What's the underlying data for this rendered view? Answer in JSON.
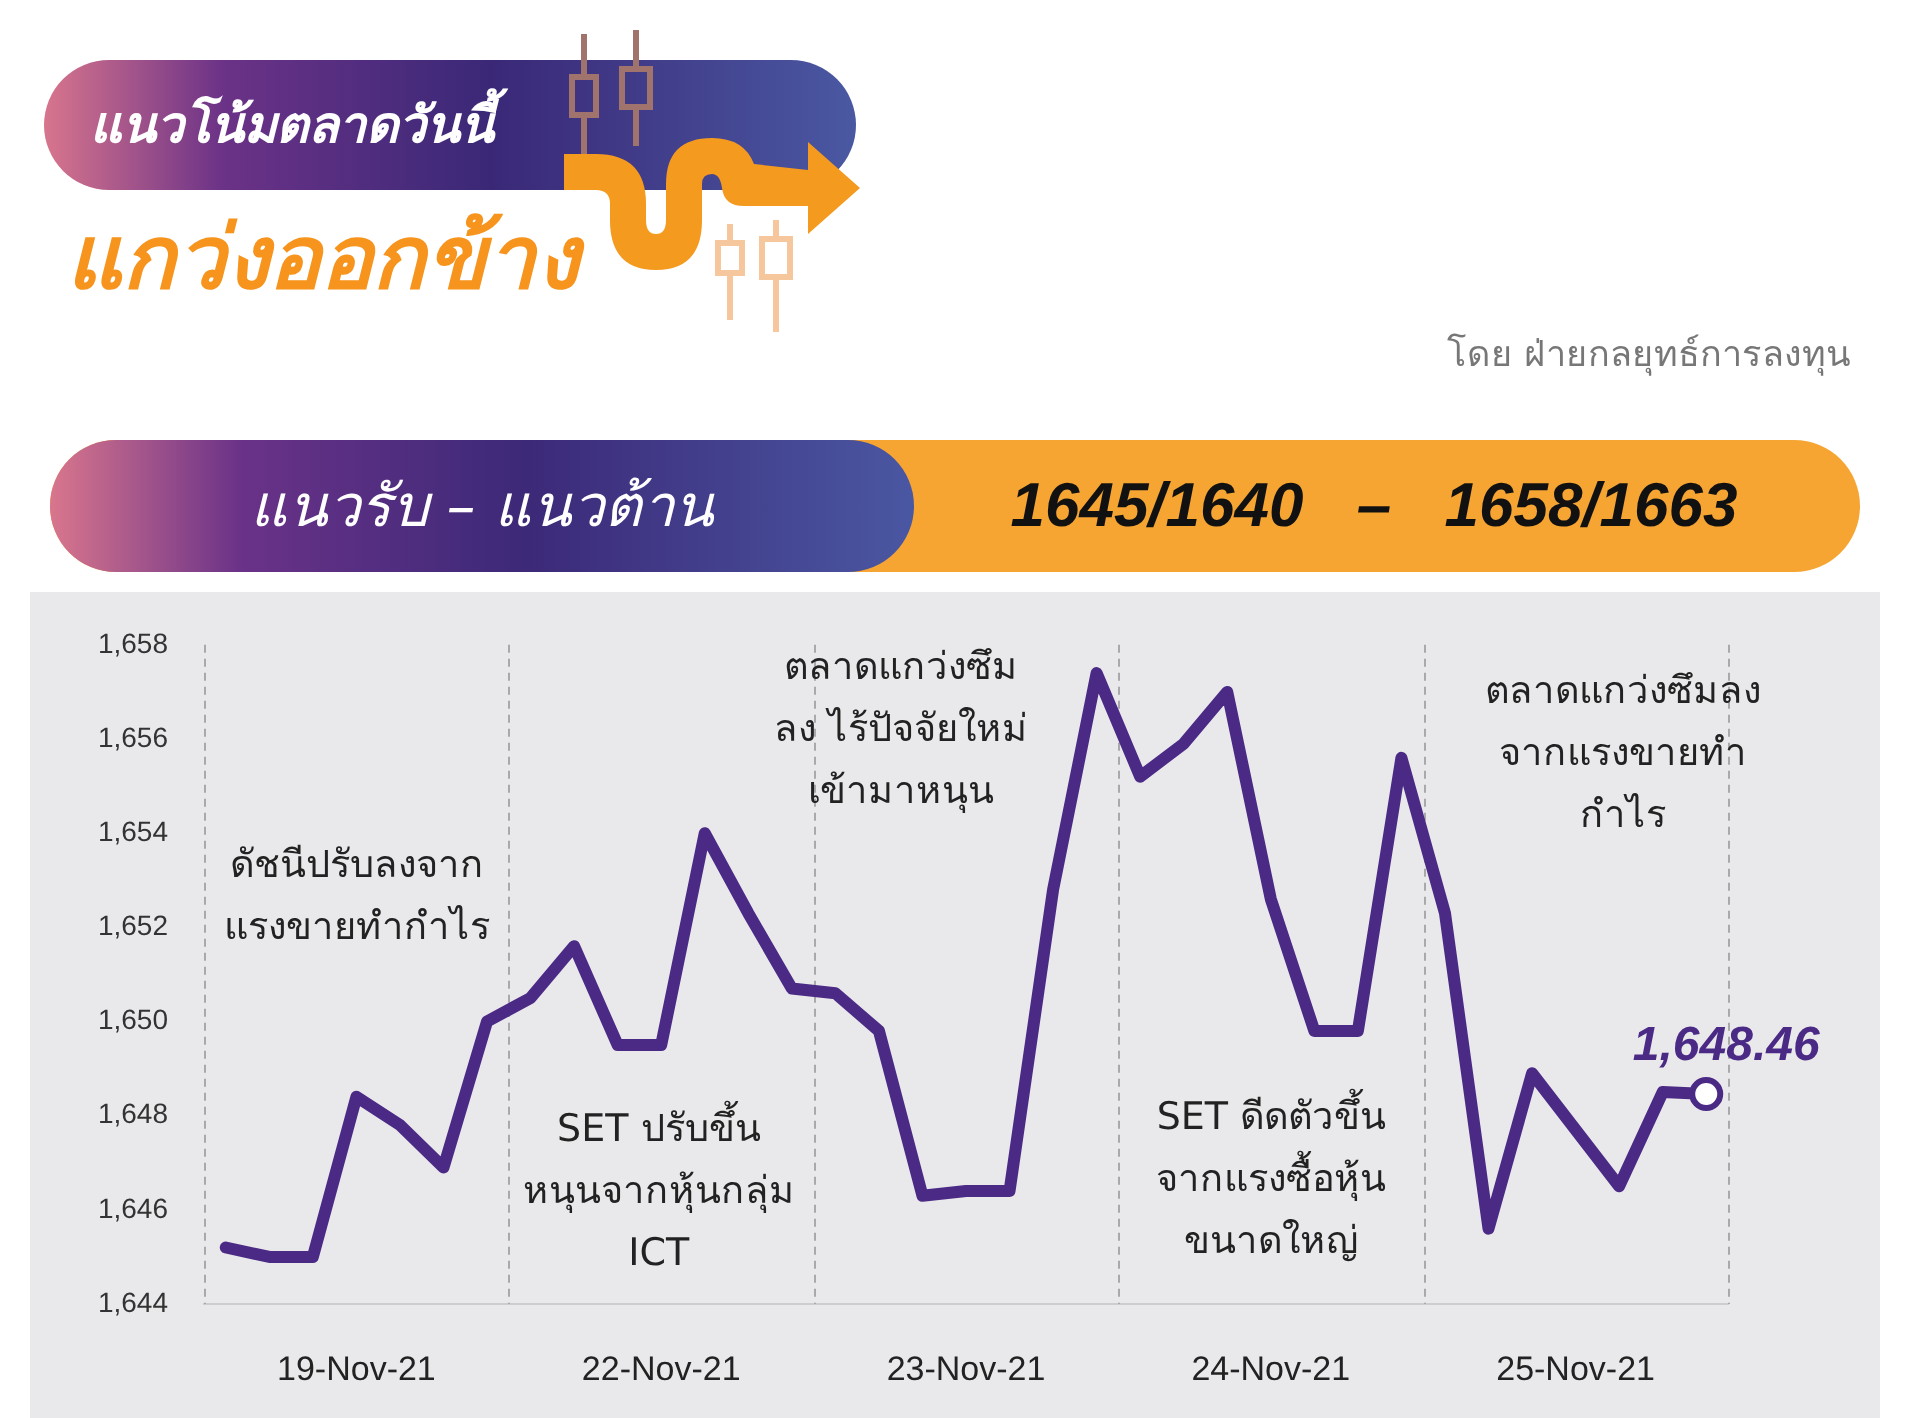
{
  "chart_data": {
    "type": "line",
    "title": "แนวโน้มตลาดวันนี้",
    "subtitle": "แกว่งออกข้าง",
    "categories": [
      null,
      null,
      null,
      "19-Nov-21",
      null,
      null,
      null,
      null,
      null,
      null,
      "22-Nov-21",
      null,
      null,
      null,
      null,
      null,
      null,
      "23-Nov-21",
      null,
      null,
      null,
      null,
      null,
      null,
      "24-Nov-21",
      null,
      null,
      null,
      null,
      null,
      null,
      "25-Nov-21",
      null,
      null,
      null
    ],
    "values": [
      1645.2,
      1645.0,
      1645.0,
      1648.4,
      1647.8,
      1646.9,
      1650.0,
      1650.5,
      1651.6,
      1649.5,
      1649.5,
      1654.0,
      1652.3,
      1650.7,
      1650.6,
      1649.8,
      1646.3,
      1646.4,
      1646.4,
      1652.8,
      1657.4,
      1655.2,
      1655.9,
      1657.0,
      1652.6,
      1649.8,
      1649.8,
      1655.6,
      1652.3,
      1645.6,
      1648.9,
      1647.7,
      1646.5,
      1648.5,
      1648.46
    ],
    "color": "#4b2a86",
    "value_labels": [
      null,
      null,
      null,
      null,
      null,
      null,
      null,
      null,
      null,
      null,
      null,
      null,
      null,
      null,
      null,
      null,
      null,
      null,
      null,
      null,
      null,
      null,
      null,
      null,
      null,
      null,
      null,
      null,
      null,
      null,
      null,
      null,
      null,
      null,
      "1,648.46"
    ],
    "ylim": [
      1644,
      1658
    ],
    "yticks": [
      {
        "value": 1644,
        "label": "1,644"
      },
      {
        "value": 1646,
        "label": "1,646"
      },
      {
        "value": 1648,
        "label": "1,648"
      },
      {
        "value": 1650,
        "label": "1,650"
      },
      {
        "value": 1652,
        "label": "1,652"
      },
      {
        "value": 1654,
        "label": "1,654"
      },
      {
        "value": 1656,
        "label": "1,656"
      },
      {
        "value": 1658,
        "label": "1,658"
      }
    ],
    "grid": "x",
    "annotations": [
      "โดย ฝ่ายกลยุทธ์การลงทุน",
      "แนวรับ – แนวต้าน",
      "1645/1640 – 1658/1663",
      "ดัชนีปรับลงจาก\nแรงขายทำกำไร",
      "SET ปรับขึ้น\nหนุนจากหุ้นกลุ่ม\nICT",
      "ตลาดแกว่งซึม\nลง ไร้ปัจจัยใหม่\nเข้ามาหนุน",
      "SET ดีดตัวขึ้น\nจากแรงซื้อหุ้น\nขนาดใหญ่",
      "ตลาดแกว่งซึมลง\nจากแรงขายทำ\nกำไร"
    ]
  }
}
